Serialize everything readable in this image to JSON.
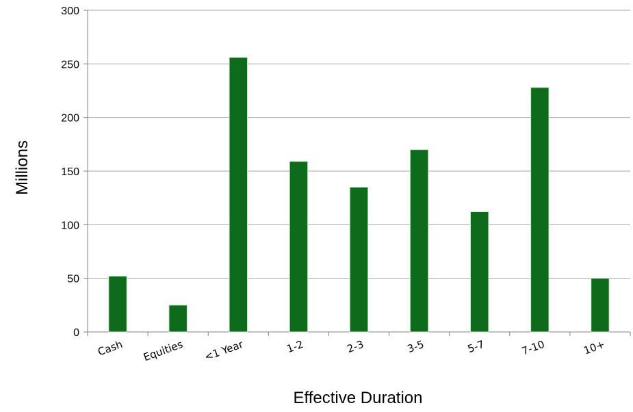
{
  "chart_data": {
    "type": "bar",
    "xlabel": "Effective Duration",
    "ylabel": "Millions",
    "categories": [
      "Cash",
      "Equities",
      "<1 Year",
      "1-2",
      "2-3",
      "3-5",
      "5-7",
      "7-10",
      "10+"
    ],
    "values": [
      52,
      25,
      256,
      159,
      135,
      170,
      112,
      228,
      50
    ],
    "ylim": [
      0,
      300
    ],
    "yticks": [
      0,
      50,
      100,
      150,
      200,
      250,
      300
    ],
    "grid": true,
    "colors": {
      "bar": "#0e6b1b",
      "bar_edge": "#cfe0cf",
      "grid": "#a6a6a6",
      "axis": "#808080"
    }
  }
}
